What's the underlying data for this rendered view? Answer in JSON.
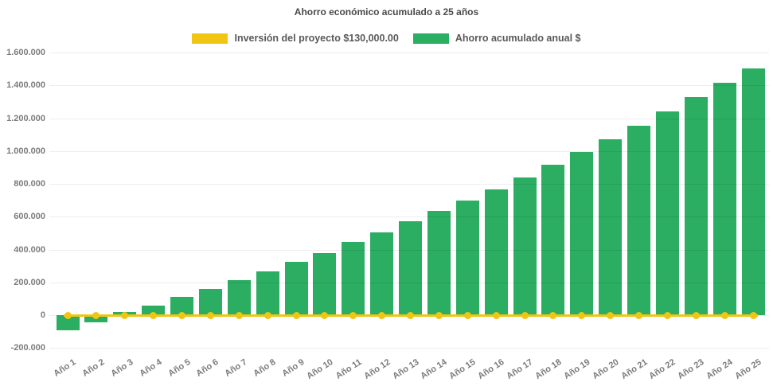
{
  "chart": {
    "title": "Ahorro económico acumulado a 25 años"
  },
  "legend": {
    "investment_label": "Inversión del proyecto $130,000.00",
    "savings_label": "Ahorro acumulado anual $"
  },
  "colors": {
    "bar_green": "#2bad62",
    "line_yellow": "#f0c514",
    "title_text": "#4a4a4a",
    "legend_text": "#595959",
    "axis_text": "#7c7c7c"
  },
  "chart_data": {
    "type": "bar",
    "title": "Ahorro económico acumulado a 25 años",
    "categories": [
      "Año 1",
      "Año 2",
      "Año 3",
      "Año 4",
      "Año 5",
      "Año 6",
      "Año 7",
      "Año 8",
      "Año 9",
      "Año 10",
      "Año 11",
      "Año 12",
      "Año 13",
      "Año 14",
      "Año 15",
      "Año 16",
      "Año 17",
      "Año 18",
      "Año 19",
      "Año 20",
      "Año 21",
      "Año 22",
      "Año 23",
      "Año 24",
      "Año 25"
    ],
    "series": [
      {
        "name": "Ahorro acumulado anual $",
        "type": "bar",
        "color": "#2bad62",
        "values": [
          -90000,
          -42000,
          20000,
          60000,
          110000,
          160000,
          215000,
          267000,
          325000,
          380000,
          445000,
          505000,
          570000,
          635000,
          700000,
          768000,
          840000,
          916000,
          994000,
          1074000,
          1152000,
          1239000,
          1327000,
          1414000,
          1505000
        ]
      },
      {
        "name": "Inversión del proyecto $130,000.00",
        "type": "line",
        "color": "#f0c514",
        "values": [
          0,
          0,
          0,
          0,
          0,
          0,
          0,
          0,
          0,
          0,
          0,
          0,
          0,
          0,
          0,
          0,
          0,
          0,
          0,
          0,
          0,
          0,
          0,
          0,
          0
        ]
      }
    ],
    "xlabel": "",
    "ylabel": "",
    "ylim": [
      -200000,
      1600000
    ],
    "y_ticks": [
      1600000,
      1400000,
      1200000,
      1000000,
      800000,
      600000,
      400000,
      200000,
      0,
      -200000
    ],
    "y_tick_labels": [
      "1.600.000",
      "1.400.000",
      "1.200.000",
      "1.000.000",
      "800.000",
      "600.000",
      "400.000",
      "200.000",
      "0",
      "-200.000"
    ],
    "legend_position": "top",
    "grid": true,
    "x_label_rotation_deg": -33
  }
}
